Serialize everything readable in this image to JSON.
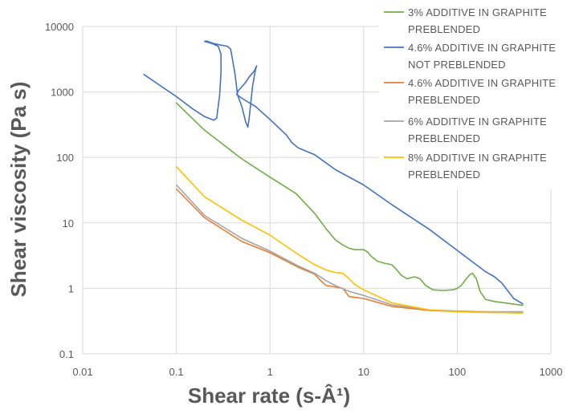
{
  "chart_data": {
    "type": "line",
    "title": "",
    "xlabel": "Shear rate (s-Â¹)",
    "ylabel": "Shear viscosity (Pa s)",
    "xscale": "log",
    "yscale": "log",
    "xlim": [
      0.01,
      1000
    ],
    "ylim": [
      0.1,
      10000
    ],
    "grid": true,
    "legend_position": "top-right",
    "x_ticks": [
      "0.01",
      "0.1",
      "1",
      "10",
      "100",
      "1000"
    ],
    "y_ticks": [
      "0.1",
      "1",
      "10",
      "100",
      "1000",
      "10000"
    ],
    "series": [
      {
        "name_lines": [
          "3% ADDITIVE IN GRAPHITE",
          "PREBLENDED"
        ],
        "color": "#70ad47",
        "points": [
          [
            0.1,
            680
          ],
          [
            0.2,
            260
          ],
          [
            0.5,
            95
          ],
          [
            1,
            50
          ],
          [
            1.9,
            28
          ],
          [
            3,
            14
          ],
          [
            4,
            8
          ],
          [
            5,
            5.5
          ],
          [
            6,
            4.6
          ],
          [
            7,
            4.1
          ],
          [
            8,
            3.9
          ],
          [
            10,
            3.9
          ],
          [
            11,
            3.6
          ],
          [
            12,
            3.1
          ],
          [
            14,
            2.6
          ],
          [
            17,
            2.4
          ],
          [
            20,
            2.3
          ],
          [
            22,
            2.0
          ],
          [
            25,
            1.6
          ],
          [
            29,
            1.4
          ],
          [
            35,
            1.5
          ],
          [
            40,
            1.4
          ],
          [
            46,
            1.1
          ],
          [
            55,
            0.95
          ],
          [
            70,
            0.93
          ],
          [
            90,
            0.95
          ],
          [
            100,
            1.0
          ],
          [
            110,
            1.1
          ],
          [
            120,
            1.3
          ],
          [
            135,
            1.6
          ],
          [
            145,
            1.7
          ],
          [
            160,
            1.4
          ],
          [
            175,
            0.9
          ],
          [
            200,
            0.68
          ],
          [
            250,
            0.63
          ],
          [
            350,
            0.59
          ],
          [
            500,
            0.55
          ]
        ]
      },
      {
        "name_lines": [
          "4.6% ADDITIVE IN GRAPHITE",
          "NOT PREBLENDED"
        ],
        "color": "#4472c4",
        "points": [
          [
            0.045,
            1850
          ],
          [
            0.1,
            850
          ],
          [
            0.15,
            550
          ],
          [
            0.2,
            420
          ],
          [
            0.25,
            370
          ],
          [
            0.27,
            400
          ],
          [
            0.29,
            900
          ],
          [
            0.3,
            2000
          ],
          [
            0.3,
            3800
          ],
          [
            0.28,
            5000
          ],
          [
            0.24,
            5500
          ],
          [
            0.22,
            5700
          ],
          [
            0.2,
            5900
          ],
          [
            0.21,
            6000
          ],
          [
            0.25,
            5500
          ],
          [
            0.3,
            5200
          ],
          [
            0.35,
            5000
          ],
          [
            0.38,
            4500
          ],
          [
            0.42,
            2000
          ],
          [
            0.45,
            900
          ],
          [
            0.5,
            600
          ],
          [
            0.55,
            350
          ],
          [
            0.58,
            290
          ],
          [
            0.6,
            400
          ],
          [
            0.65,
            1200
          ],
          [
            0.7,
            2200
          ],
          [
            0.72,
            2500
          ],
          [
            0.68,
            2100
          ],
          [
            0.6,
            1700
          ],
          [
            0.55,
            1400
          ],
          [
            0.5,
            1200
          ],
          [
            0.46,
            1050
          ],
          [
            0.44,
            920
          ],
          [
            0.5,
            800
          ],
          [
            0.7,
            600
          ],
          [
            1,
            380
          ],
          [
            1.5,
            220
          ],
          [
            1.7,
            170
          ],
          [
            2,
            140
          ],
          [
            3,
            110
          ],
          [
            5,
            65
          ],
          [
            10,
            38
          ],
          [
            20,
            19
          ],
          [
            50,
            8
          ],
          [
            100,
            3.8
          ],
          [
            200,
            1.8
          ],
          [
            250,
            1.5
          ],
          [
            300,
            1.2
          ],
          [
            400,
            0.7
          ],
          [
            500,
            0.58
          ]
        ]
      },
      {
        "name_lines": [
          "4.6% ADDITIVE IN GRAPHITE",
          "PREBLENDED"
        ],
        "color": "#ed7d31",
        "points": [
          [
            0.1,
            33
          ],
          [
            0.2,
            12
          ],
          [
            0.5,
            5.2
          ],
          [
            1,
            3.5
          ],
          [
            2,
            2.1
          ],
          [
            3,
            1.65
          ],
          [
            3.5,
            1.3
          ],
          [
            4,
            1.1
          ],
          [
            5,
            1.05
          ],
          [
            6,
            1.0
          ],
          [
            7,
            0.75
          ],
          [
            8,
            0.73
          ],
          [
            10,
            0.7
          ],
          [
            20,
            0.53
          ],
          [
            50,
            0.46
          ],
          [
            100,
            0.44
          ],
          [
            200,
            0.43
          ],
          [
            500,
            0.42
          ]
        ]
      },
      {
        "name_lines": [
          "6% ADDITIVE IN GRAPHITE",
          "PREBLENDED"
        ],
        "color": "#a5a5a5",
        "points": [
          [
            0.1,
            38
          ],
          [
            0.2,
            13
          ],
          [
            0.5,
            5.8
          ],
          [
            1,
            3.7
          ],
          [
            2,
            2.2
          ],
          [
            3,
            1.7
          ],
          [
            4,
            1.3
          ],
          [
            5,
            1.1
          ],
          [
            7,
            0.9
          ],
          [
            10,
            0.78
          ],
          [
            20,
            0.56
          ],
          [
            50,
            0.47
          ],
          [
            100,
            0.45
          ],
          [
            200,
            0.44
          ],
          [
            500,
            0.44
          ]
        ]
      },
      {
        "name_lines": [
          "8% ADDITIVE IN GRAPHITE",
          "PREBLENDED"
        ],
        "color": "#ffc000",
        "points": [
          [
            0.1,
            72
          ],
          [
            0.2,
            25
          ],
          [
            0.5,
            11
          ],
          [
            1,
            6.5
          ],
          [
            2,
            3.3
          ],
          [
            3,
            2.3
          ],
          [
            4,
            1.9
          ],
          [
            5,
            1.75
          ],
          [
            6,
            1.7
          ],
          [
            7,
            1.4
          ],
          [
            8,
            1.15
          ],
          [
            10,
            0.95
          ],
          [
            20,
            0.6
          ],
          [
            50,
            0.47
          ],
          [
            100,
            0.44
          ],
          [
            200,
            0.43
          ],
          [
            500,
            0.42
          ]
        ]
      }
    ]
  }
}
